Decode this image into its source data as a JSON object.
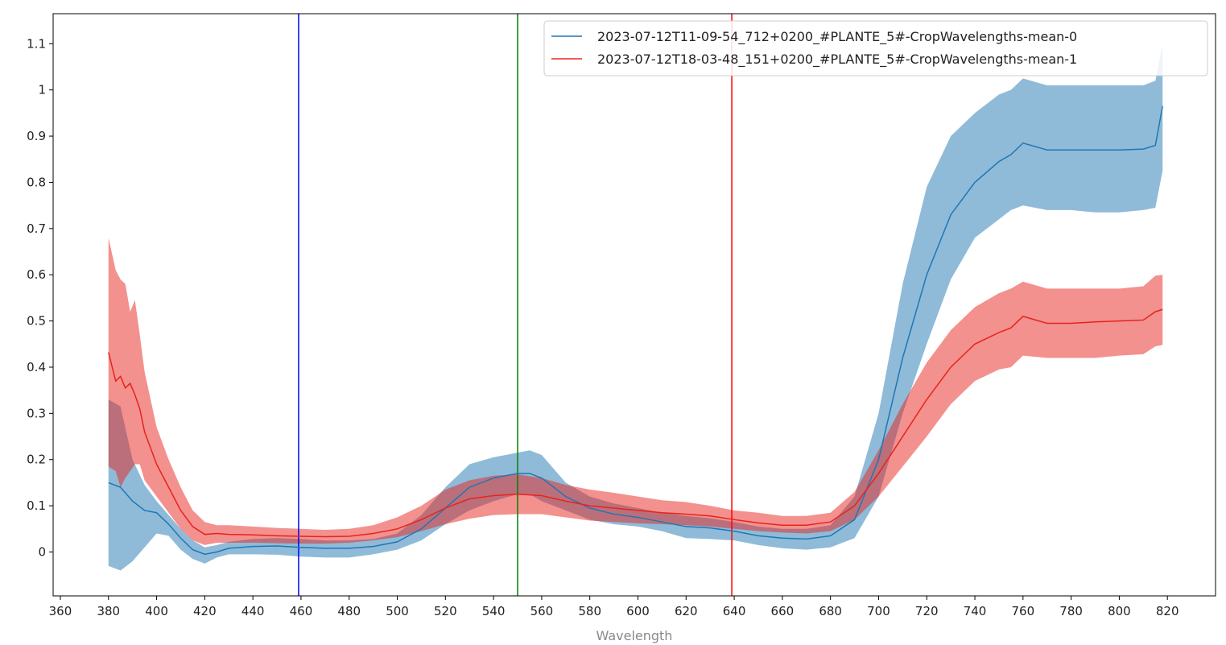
{
  "chart_data": {
    "type": "line",
    "title": "",
    "xlabel": "Wavelength",
    "ylabel": "",
    "xlim": [
      357,
      840
    ],
    "ylim": [
      -0.095,
      1.165
    ],
    "x_ticks": [
      360,
      380,
      400,
      420,
      440,
      460,
      480,
      500,
      520,
      540,
      560,
      580,
      600,
      620,
      640,
      660,
      680,
      700,
      720,
      740,
      760,
      780,
      800,
      820
    ],
    "y_ticks": [
      0,
      0.1,
      0.2,
      0.3,
      0.4,
      0.5,
      0.6,
      0.7,
      0.8,
      0.9,
      1,
      1.1
    ],
    "y_tick_labels": [
      "0",
      "0.1",
      "0.2",
      "0.3",
      "0.4",
      "0.5",
      "0.6",
      "0.7",
      "0.8",
      "0.9",
      "1",
      "1.1"
    ],
    "grid": false,
    "legend_position": "top-right",
    "vertical_lines": [
      {
        "x": 459,
        "color": "#0000ff"
      },
      {
        "x": 550,
        "color": "#008000"
      },
      {
        "x": 639,
        "color": "#ff0000"
      }
    ],
    "series": [
      {
        "name": "2023-07-12T11-09-54_712+0200_#PLANTE_5#-CropWavelengths-mean-0",
        "color": "#1f77b4",
        "band_color": "#1f77b4",
        "x": [
          380,
          385,
          390,
          395,
          400,
          405,
          410,
          415,
          420,
          425,
          430,
          440,
          450,
          460,
          470,
          480,
          490,
          500,
          510,
          520,
          530,
          540,
          550,
          555,
          560,
          570,
          580,
          590,
          600,
          610,
          620,
          630,
          640,
          650,
          660,
          670,
          680,
          690,
          700,
          710,
          720,
          730,
          740,
          750,
          755,
          760,
          770,
          780,
          790,
          800,
          810,
          815,
          818
        ],
        "mean": [
          0.15,
          0.14,
          0.11,
          0.09,
          0.085,
          0.06,
          0.03,
          0.005,
          -0.005,
          0.0,
          0.008,
          0.012,
          0.013,
          0.01,
          0.008,
          0.008,
          0.012,
          0.022,
          0.05,
          0.095,
          0.14,
          0.16,
          0.17,
          0.17,
          0.16,
          0.12,
          0.095,
          0.082,
          0.075,
          0.065,
          0.055,
          0.052,
          0.045,
          0.035,
          0.03,
          0.028,
          0.035,
          0.07,
          0.2,
          0.42,
          0.6,
          0.73,
          0.8,
          0.845,
          0.86,
          0.885,
          0.87,
          0.87,
          0.87,
          0.87,
          0.872,
          0.88,
          0.965
        ],
        "upper": [
          0.33,
          0.315,
          0.2,
          0.145,
          0.11,
          0.08,
          0.05,
          0.025,
          0.01,
          0.015,
          0.022,
          0.028,
          0.03,
          0.028,
          0.025,
          0.025,
          0.028,
          0.04,
          0.08,
          0.14,
          0.19,
          0.205,
          0.215,
          0.22,
          0.21,
          0.15,
          0.12,
          0.105,
          0.095,
          0.085,
          0.078,
          0.073,
          0.065,
          0.055,
          0.05,
          0.05,
          0.058,
          0.12,
          0.3,
          0.58,
          0.79,
          0.9,
          0.95,
          0.99,
          1.0,
          1.025,
          1.01,
          1.01,
          1.01,
          1.01,
          1.01,
          1.02,
          1.1
        ],
        "lower": [
          -0.03,
          -0.04,
          -0.02,
          0.01,
          0.04,
          0.035,
          0.005,
          -0.015,
          -0.025,
          -0.012,
          -0.005,
          -0.005,
          -0.006,
          -0.01,
          -0.012,
          -0.012,
          -0.005,
          0.005,
          0.025,
          0.06,
          0.09,
          0.11,
          0.125,
          0.125,
          0.11,
          0.09,
          0.07,
          0.06,
          0.055,
          0.045,
          0.03,
          0.028,
          0.025,
          0.015,
          0.008,
          0.005,
          0.01,
          0.03,
          0.12,
          0.3,
          0.45,
          0.59,
          0.68,
          0.72,
          0.74,
          0.75,
          0.74,
          0.74,
          0.735,
          0.735,
          0.74,
          0.745,
          0.825
        ]
      },
      {
        "name": "2023-07-12T18-03-48_151+0200_#PLANTE_5#-CropWavelengths-mean-1",
        "color": "#e8231d",
        "band_color": "#e8231d",
        "x": [
          380,
          383,
          385,
          387,
          389,
          391,
          393,
          395,
          400,
          405,
          410,
          415,
          420,
          425,
          430,
          440,
          450,
          460,
          470,
          480,
          490,
          500,
          510,
          520,
          530,
          540,
          550,
          560,
          570,
          580,
          590,
          600,
          610,
          620,
          630,
          640,
          650,
          660,
          670,
          680,
          690,
          700,
          710,
          720,
          730,
          740,
          750,
          755,
          760,
          770,
          780,
          790,
          800,
          810,
          815,
          818
        ],
        "mean": [
          0.432,
          0.37,
          0.38,
          0.355,
          0.365,
          0.34,
          0.31,
          0.26,
          0.19,
          0.14,
          0.09,
          0.055,
          0.038,
          0.04,
          0.038,
          0.037,
          0.035,
          0.034,
          0.033,
          0.034,
          0.04,
          0.05,
          0.07,
          0.095,
          0.115,
          0.122,
          0.125,
          0.122,
          0.11,
          0.1,
          0.095,
          0.09,
          0.085,
          0.082,
          0.078,
          0.07,
          0.063,
          0.058,
          0.058,
          0.065,
          0.1,
          0.17,
          0.25,
          0.33,
          0.4,
          0.45,
          0.475,
          0.485,
          0.51,
          0.495,
          0.495,
          0.498,
          0.5,
          0.502,
          0.52,
          0.525
        ],
        "upper": [
          0.68,
          0.61,
          0.59,
          0.58,
          0.52,
          0.545,
          0.47,
          0.39,
          0.27,
          0.2,
          0.14,
          0.09,
          0.065,
          0.058,
          0.058,
          0.055,
          0.052,
          0.05,
          0.048,
          0.05,
          0.058,
          0.075,
          0.1,
          0.135,
          0.155,
          0.165,
          0.168,
          0.16,
          0.145,
          0.135,
          0.128,
          0.12,
          0.112,
          0.108,
          0.1,
          0.09,
          0.085,
          0.078,
          0.078,
          0.085,
          0.13,
          0.22,
          0.32,
          0.41,
          0.48,
          0.53,
          0.56,
          0.57,
          0.585,
          0.57,
          0.57,
          0.57,
          0.57,
          0.575,
          0.598,
          0.6
        ],
        "lower": [
          0.185,
          0.175,
          0.14,
          0.16,
          0.175,
          0.19,
          0.19,
          0.155,
          0.12,
          0.085,
          0.05,
          0.025,
          0.015,
          0.02,
          0.02,
          0.02,
          0.019,
          0.018,
          0.018,
          0.02,
          0.025,
          0.032,
          0.045,
          0.06,
          0.072,
          0.08,
          0.082,
          0.082,
          0.075,
          0.068,
          0.065,
          0.062,
          0.06,
          0.058,
          0.055,
          0.05,
          0.045,
          0.042,
          0.04,
          0.045,
          0.07,
          0.12,
          0.185,
          0.25,
          0.32,
          0.37,
          0.395,
          0.4,
          0.425,
          0.42,
          0.42,
          0.42,
          0.425,
          0.428,
          0.445,
          0.448
        ]
      }
    ]
  }
}
